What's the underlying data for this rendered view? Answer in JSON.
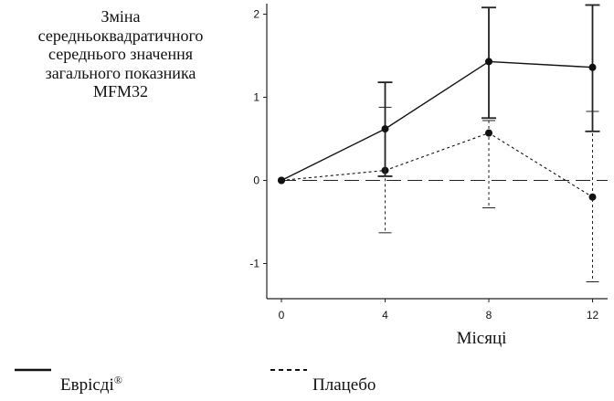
{
  "chart_data": {
    "type": "line",
    "ylabel_lines": [
      "Зміна",
      "середньоквадратичного",
      "середнього значення",
      "загального показника",
      "MFM32"
    ],
    "xlabel": "Місяці",
    "x": [
      0,
      4,
      8,
      12
    ],
    "x_ticks": [
      "0",
      "4",
      "8",
      "12"
    ],
    "y_ticks": [
      "2",
      "1",
      "0",
      "-1"
    ],
    "xlim": [
      0,
      12.3
    ],
    "ylim": [
      -1.4,
      2.1
    ],
    "reference_line": 0,
    "grid": false,
    "legend_position": "bottom",
    "series": [
      {
        "name": "Еврісді",
        "name_suffix": "®",
        "style": "solid",
        "values": [
          0,
          0.62,
          1.43,
          1.36
        ],
        "err_low": [
          0,
          0.05,
          0.75,
          0.59
        ],
        "err_high": [
          0,
          1.18,
          2.08,
          2.11
        ]
      },
      {
        "name": "Плацебо",
        "style": "dashed",
        "values": [
          0,
          0.12,
          0.57,
          -0.2
        ],
        "err_low": [
          0,
          -0.63,
          -0.33,
          -1.22
        ],
        "err_high": [
          0,
          0.88,
          0.72,
          0.83
        ]
      }
    ]
  }
}
